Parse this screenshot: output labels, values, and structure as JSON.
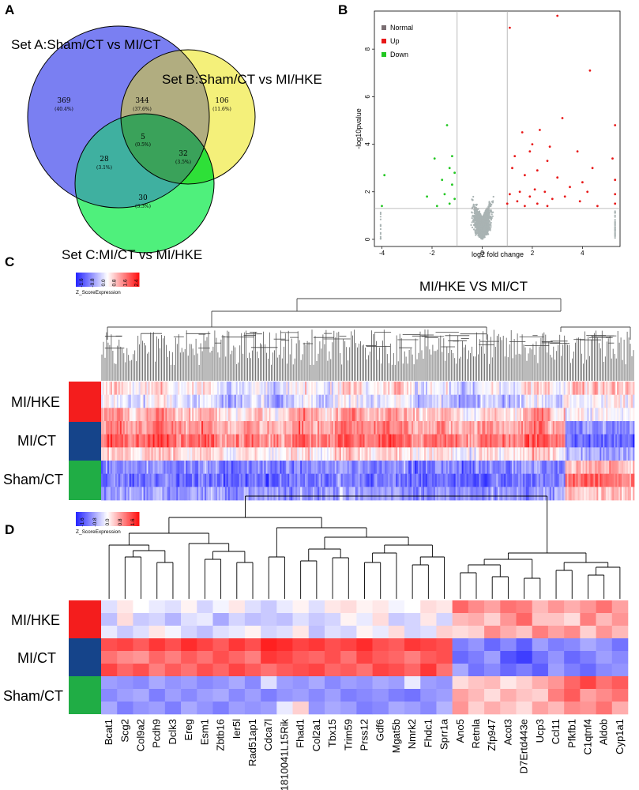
{
  "panels": {
    "a": "A",
    "b": "B",
    "c": "C",
    "d": "D"
  },
  "venn": {
    "sets": [
      {
        "name": "Set A:Sham/CT vs MI/CT",
        "color": "#7a7ff2"
      },
      {
        "name": "Set B:Sham/CT vs MI/HKE",
        "color": "#f4f07a"
      },
      {
        "name": "Set C:MI/CT vs MI/HKE",
        "color": "#4ff07c"
      }
    ],
    "regions": [
      {
        "id": "A_only",
        "count": "369",
        "pct": "(40.4%)"
      },
      {
        "id": "AB",
        "count": "344",
        "pct": "(37.6%)"
      },
      {
        "id": "B_only",
        "count": "106",
        "pct": "(11.6%)"
      },
      {
        "id": "ABC",
        "count": "5",
        "pct": "(0.5%)"
      },
      {
        "id": "AC",
        "count": "28",
        "pct": "(3.1%)"
      },
      {
        "id": "BC",
        "count": "32",
        "pct": "(3.5%)"
      },
      {
        "id": "C_only",
        "count": "30",
        "pct": "(3.3%)"
      }
    ],
    "region_colors": {
      "AB": "#b1ad80",
      "AC": "#3fb0a0",
      "BC": "#2ee038",
      "ABC": "#3aa25a"
    }
  },
  "chart_data": [
    {
      "type": "scatter",
      "title": "",
      "xlabel": "log2 fold change",
      "ylabel": "-log10pvalue",
      "xlim": [
        -4.3,
        5.5
      ],
      "ylim": [
        -0.3,
        9.6
      ],
      "xticks": [
        "-4",
        "-2",
        "0",
        "2",
        "4"
      ],
      "yticks": [
        "0",
        "2",
        "4",
        "6",
        "8"
      ],
      "thresholds": {
        "fold_change_x": [
          -1,
          1
        ],
        "pvalue_y": 1.3
      },
      "legend": {
        "position": "top-left",
        "items": [
          {
            "name": "Normal",
            "color": "#7a6e72"
          },
          {
            "name": "Up",
            "color": "#e81818"
          },
          {
            "name": "Down",
            "color": "#22c722"
          }
        ]
      },
      "series": [
        {
          "name": "Up",
          "color": "#e81818",
          "points": [
            [
              3.0,
              9.4
            ],
            [
              1.1,
              8.9
            ],
            [
              4.3,
              7.1
            ],
            [
              3.2,
              5.1
            ],
            [
              5.3,
              4.8
            ],
            [
              2.3,
              4.6
            ],
            [
              1.6,
              4.5
            ],
            [
              2.0,
              4.0
            ],
            [
              1.9,
              3.7
            ],
            [
              2.7,
              3.9
            ],
            [
              1.3,
              3.5
            ],
            [
              3.8,
              3.7
            ],
            [
              5.2,
              3.4
            ],
            [
              4.4,
              3.0
            ],
            [
              2.6,
              3.3
            ],
            [
              1.2,
              3.0
            ],
            [
              2.2,
              2.9
            ],
            [
              1.7,
              2.7
            ],
            [
              3.0,
              2.6
            ],
            [
              4.0,
              2.4
            ],
            [
              5.3,
              2.5
            ],
            [
              2.1,
              2.1
            ],
            [
              1.5,
              2.0
            ],
            [
              3.5,
              2.2
            ],
            [
              4.2,
              2.0
            ],
            [
              2.5,
              2.0
            ],
            [
              1.1,
              1.9
            ],
            [
              1.9,
              1.8
            ],
            [
              2.8,
              1.7
            ],
            [
              3.3,
              1.8
            ],
            [
              5.3,
              1.9
            ],
            [
              1.4,
              1.6
            ],
            [
              2.2,
              1.5
            ],
            [
              1.0,
              1.5
            ],
            [
              3.9,
              1.6
            ],
            [
              2.6,
              1.4
            ],
            [
              1.7,
              1.4
            ],
            [
              4.6,
              1.4
            ],
            [
              5.3,
              1.5
            ]
          ]
        },
        {
          "name": "Down",
          "color": "#22c722",
          "points": [
            [
              -1.4,
              4.8
            ],
            [
              -1.2,
              3.5
            ],
            [
              -1.9,
              3.4
            ],
            [
              -1.3,
              3.0
            ],
            [
              -1.1,
              2.8
            ],
            [
              -1.6,
              2.5
            ],
            [
              -3.9,
              2.7
            ],
            [
              -1.2,
              2.3
            ],
            [
              -1.5,
              1.9
            ],
            [
              -2.2,
              1.8
            ],
            [
              -1.1,
              1.7
            ],
            [
              -1.3,
              1.5
            ],
            [
              -1.8,
              1.4
            ],
            [
              -4.0,
              1.4
            ]
          ]
        }
      ]
    },
    {
      "type": "heatmap",
      "title": "MI/HKE VS MI/CT",
      "rows": [
        "MI/HKE",
        "MI/CT",
        "Sham/CT"
      ],
      "row_colors": [
        "#f41d1d",
        "#15448a",
        "#20ad45"
      ],
      "legend": {
        "label": "Z_ScoreExpression",
        "ticks": [
          "-1.6",
          "-0.8",
          "0.0",
          "0.8",
          "1.6",
          "2.4"
        ],
        "range": [
          -2.0,
          2.6
        ]
      }
    },
    {
      "type": "heatmap",
      "rows": [
        "MI/HKE",
        "MI/CT",
        "Sham/CT"
      ],
      "row_colors": [
        "#f41d1d",
        "#15448a",
        "#20ad45"
      ],
      "legend": {
        "label": "Z_ScoreExpression",
        "ticks": [
          "-1.6",
          "-0.8",
          "0.0",
          "0.8",
          "1.6"
        ],
        "range": [
          -2.0,
          2.0
        ]
      },
      "genes": [
        "Bcat1",
        "Scg2",
        "Col9a2",
        "Pcdh9",
        "Dclk3",
        "Ereg",
        "Esm1",
        "Zbtb16",
        "Ier5l",
        "Rad51ap1",
        "Cdca7l",
        "1810041L15Rik",
        "Fhad1",
        "Col2a1",
        "Tbx15",
        "Trim59",
        "Prss12",
        "Gdf6",
        "Mgat5b",
        "Nmrk2",
        "Fhdc1",
        "Sprr1a",
        "Ano5",
        "Retnla",
        "Zfp947",
        "Acot3",
        "D7Ertd443e",
        "Ucp3",
        "Ccl11",
        "Pfkfb1",
        "C1qtnf4",
        "Aldob",
        "Cyp1a1"
      ],
      "values": [
        [
          -0.3,
          0.2,
          0.0,
          -0.2,
          -0.3,
          0.1,
          -0.4,
          -0.1,
          0.2,
          -0.3,
          -0.5,
          -0.2,
          0.1,
          -0.3,
          0.2,
          0.3,
          0.1,
          0.2,
          -0.1,
          0.0,
          0.3,
          0.2,
          1.3,
          1.0,
          0.8,
          1.2,
          1.1,
          0.6,
          0.9,
          0.7,
          0.9,
          1.2,
          0.8
        ],
        [
          -0.6,
          0.3,
          -0.5,
          -0.4,
          -0.7,
          -0.3,
          -0.2,
          -0.8,
          -0.4,
          -0.6,
          -0.5,
          -0.6,
          -0.3,
          -0.5,
          -0.4,
          0.1,
          -0.2,
          0.3,
          -0.5,
          -0.4,
          0.2,
          -0.4,
          0.6,
          0.7,
          0.4,
          0.9,
          1.3,
          0.5,
          0.5,
          0.3,
          1.1,
          0.6,
          0.9
        ],
        [
          -0.2,
          -0.5,
          -0.3,
          0.2,
          -0.1,
          -0.4,
          -0.6,
          -0.3,
          -0.2,
          0.1,
          -0.4,
          -0.3,
          0.2,
          -0.6,
          -0.3,
          -0.4,
          0.1,
          -0.2,
          0.3,
          -0.4,
          -0.3,
          0.4,
          0.3,
          0.4,
          1.0,
          0.7,
          0.5,
          1.1,
          0.8,
          1.0,
          0.4,
          0.9,
          0.6
        ],
        [
          1.5,
          1.6,
          1.4,
          1.7,
          1.5,
          1.8,
          1.6,
          1.4,
          1.7,
          1.5,
          1.9,
          1.8,
          1.6,
          1.7,
          1.5,
          1.6,
          1.8,
          1.5,
          1.4,
          1.7,
          1.6,
          1.5,
          -1.2,
          -1.0,
          -1.4,
          -1.1,
          -1.5,
          -0.9,
          -1.2,
          -1.1,
          -0.8,
          -1.0,
          -1.3
        ],
        [
          1.2,
          1.0,
          0.9,
          1.3,
          1.1,
          1.4,
          1.2,
          1.5,
          1.3,
          1.1,
          1.7,
          1.6,
          1.4,
          1.3,
          1.5,
          1.2,
          1.6,
          1.4,
          1.3,
          1.1,
          1.4,
          1.5,
          -1.4,
          -1.2,
          -0.9,
          -1.6,
          -1.8,
          -1.3,
          -1.0,
          -1.4,
          -1.2,
          -0.9,
          -1.1
        ],
        [
          1.6,
          1.3,
          1.5,
          1.1,
          1.4,
          1.2,
          1.5,
          1.3,
          1.6,
          1.4,
          1.2,
          1.4,
          1.5,
          1.6,
          1.3,
          1.4,
          1.2,
          1.6,
          1.5,
          1.3,
          1.7,
          1.2,
          -0.8,
          -1.3,
          -1.1,
          -1.4,
          -1.2,
          -1.5,
          -0.9,
          -1.2,
          -1.4,
          -1.1,
          -1.0
        ],
        [
          -0.9,
          -1.0,
          -1.1,
          -0.8,
          -1.0,
          -0.9,
          -1.1,
          -1.0,
          -0.8,
          -1.1,
          -0.3,
          -0.9,
          -1.0,
          -0.8,
          -1.1,
          -0.9,
          -1.0,
          -0.8,
          -0.9,
          -0.2,
          -0.9,
          -1.0,
          0.3,
          0.5,
          0.6,
          0.2,
          0.4,
          0.7,
          0.9,
          1.3,
          1.6,
          1.2,
          1.4
        ],
        [
          -1.1,
          -0.9,
          -0.8,
          -1.2,
          -0.9,
          -1.1,
          -0.9,
          -0.8,
          -1.1,
          -0.9,
          -1.2,
          -1.0,
          -0.9,
          -1.1,
          -0.9,
          -1.2,
          -1.1,
          -1.0,
          -1.2,
          -1.3,
          -1.0,
          -0.9,
          0.8,
          0.6,
          0.3,
          0.7,
          0.5,
          0.4,
          1.1,
          1.4,
          0.8,
          1.0,
          1.2
        ],
        [
          -0.8,
          -1.2,
          -1.0,
          -0.9,
          -1.2,
          -0.8,
          -1.0,
          -1.2,
          -0.9,
          -1.0,
          -0.9,
          -0.2,
          0.4,
          -1.0,
          -0.8,
          -0.9,
          -1.2,
          -1.1,
          -0.8,
          -0.9,
          -1.1,
          -0.7,
          0.9,
          0.4,
          0.7,
          0.5,
          0.3,
          0.8,
          0.6,
          1.0,
          0.9,
          1.2,
          0.7
        ]
      ]
    }
  ]
}
